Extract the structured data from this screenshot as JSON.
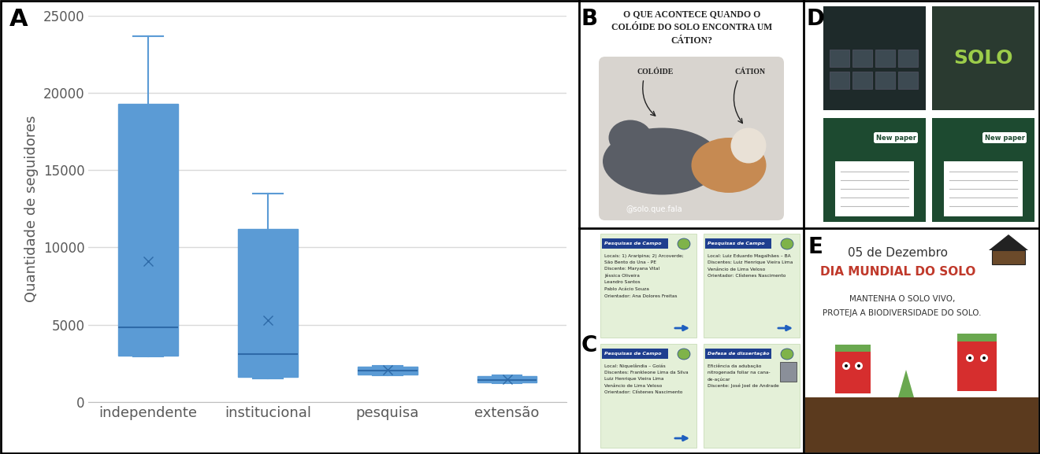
{
  "chart_data": {
    "panel": "A",
    "type": "box",
    "categories": [
      "independente",
      "institucional",
      "pesquisa",
      "extensão"
    ],
    "boxes": [
      {
        "whislo": 2950,
        "q1": 3000,
        "med": 4800,
        "q3": 19300,
        "whishi": 23700,
        "mean": 9100
      },
      {
        "whislo": 1500,
        "q1": 1600,
        "med": 3100,
        "q3": 11200,
        "whishi": 13500,
        "mean": 5300
      },
      {
        "whislo": 1700,
        "q1": 1750,
        "med": 2000,
        "q3": 2300,
        "whishi": 2350,
        "mean": 2050
      },
      {
        "whislo": 1200,
        "q1": 1250,
        "med": 1400,
        "q3": 1650,
        "whishi": 1700,
        "mean": 1450
      }
    ],
    "y_label": "Quantidade de seguidores",
    "ylim": [
      0,
      25000
    ],
    "yticks": [
      0,
      5000,
      10000,
      15000,
      20000,
      25000
    ],
    "grid": true,
    "color": "#5b9bd5",
    "marker": "x"
  },
  "images": {
    "B": {
      "title_lines": [
        "O QUE ACONTECE QUANDO O",
        "COLÓIDE DO SOLO ENCONTRA UM",
        "CÁTION?"
      ],
      "labels": [
        "COLÓIDE",
        "CÁTION"
      ],
      "handle": "@solo.que.fala"
    },
    "C": {
      "cards": [
        {
          "title": "Pesquisas de Campo",
          "lines": [
            "Locais: 1) Araripina; 2) Arcoverde;",
            "São Bento do Una - PE",
            "Discente: Maryana Vital",
            "Jéssica Oliveira",
            "Leandro Santos",
            "Pablo Acácio Souza",
            "Orientador: Ana Dolores Freitas"
          ]
        },
        {
          "title": "Pesquisas de Campo",
          "lines": [
            "Local: Luiz Eduardo Magalhães – BA",
            "Discentes: Luiz Henrique Vieira Lima",
            "Venâncio de Lima Veloso",
            "Orientador: Clístenes Nascimento"
          ]
        },
        {
          "title": "Pesquisas de Campo",
          "lines": [
            "Local: Niquelândia – Goiás",
            "Discentes: Frankleone Lima da Silva",
            "Luiz Henrique Vieira Lima",
            "Venâncio de Lima Veloso",
            "Orientador: Clístenes Nascimento"
          ]
        },
        {
          "title": "Defesa de dissertação",
          "lines": [
            "Eficiência da adubação",
            "nitrogenada foliar na cana-",
            "de-açúcar",
            "Discente: José Joel de Andrade"
          ]
        }
      ]
    },
    "D": {
      "thumbnails": [
        {
          "texts": []
        },
        {
          "texts": [
            "SOLO"
          ]
        },
        {
          "texts": [
            "New paper"
          ]
        },
        {
          "texts": [
            "New paper"
          ]
        }
      ]
    },
    "E": {
      "date": "05 de Dezembro",
      "title": "DIA MUNDIAL DO SOLO",
      "lines": [
        "MANTENHA O SOLO VIVO,",
        "PROTEJA A BIODIVERSIDADE DO SOLO."
      ]
    }
  }
}
